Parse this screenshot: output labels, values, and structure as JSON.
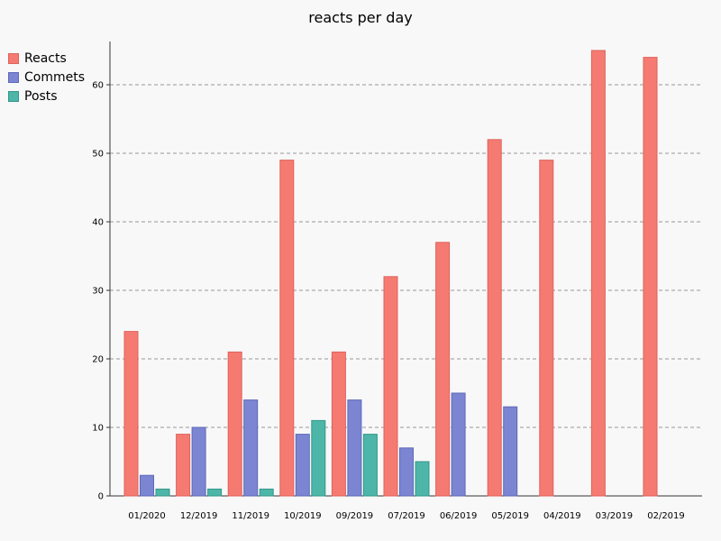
{
  "chart_data": {
    "type": "bar",
    "title": "reacts per day",
    "xlabel": "",
    "ylabel": "",
    "categories": [
      "01/2020",
      "12/2019",
      "11/2019",
      "10/2019",
      "09/2019",
      "07/2019",
      "06/2019",
      "05/2019",
      "04/2019",
      "03/2019",
      "02/2019"
    ],
    "series": [
      {
        "name": "Reacts",
        "color": "#f57b72",
        "stroke": "#e0625a",
        "values": [
          24,
          9,
          21,
          49,
          21,
          32,
          37,
          52,
          49,
          65,
          64
        ]
      },
      {
        "name": "Commets",
        "color": "#7b85d2",
        "stroke": "#5f69b8",
        "values": [
          3,
          10,
          14,
          9,
          14,
          7,
          15,
          13,
          0,
          0,
          0
        ]
      },
      {
        "name": "Posts",
        "color": "#4db6a8",
        "stroke": "#35978a",
        "values": [
          1,
          1,
          1,
          11,
          9,
          5,
          0,
          0,
          0,
          0,
          0
        ]
      }
    ],
    "ylim": [
      0,
      66
    ],
    "yticks": [
      0,
      10,
      20,
      30,
      40,
      50,
      60
    ],
    "grid": true,
    "legend_position": "top-left"
  }
}
